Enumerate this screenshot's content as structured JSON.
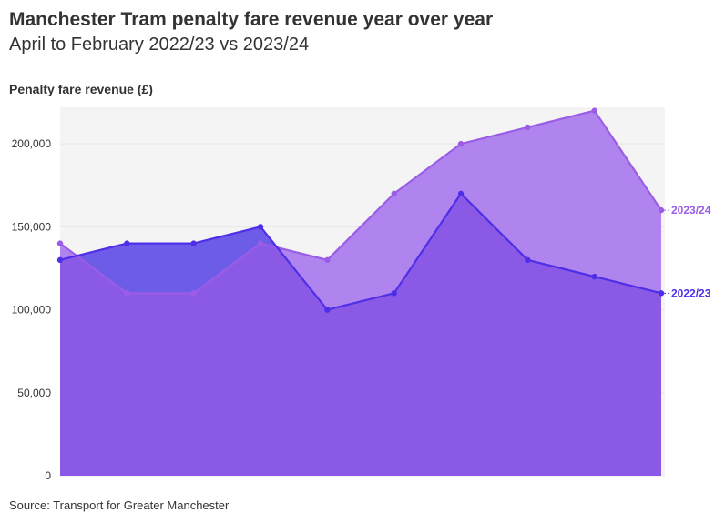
{
  "header": {
    "title": "Manchester Tram penalty fare revenue year over year",
    "subtitle": "April to February 2022/23 vs 2023/24"
  },
  "footer": {
    "source": "Source: Transport for Greater Manchester"
  },
  "chart_data": {
    "type": "area",
    "title": "Manchester Tram penalty fare revenue year over year",
    "subtitle": "April to February 2022/23 vs 2023/24",
    "ylabel": "Penalty fare revenue (£)",
    "xlabel": "",
    "ylim": [
      0,
      222000
    ],
    "yticks": [
      0,
      50000,
      100000,
      150000,
      200000
    ],
    "ytick_labels": [
      "0",
      "50,000",
      "100,000",
      "150,000",
      "200,000"
    ],
    "x_points": 10,
    "grid": true,
    "series": [
      {
        "name": "2022/23",
        "values": [
          130000,
          140000,
          140000,
          150000,
          100000,
          110000,
          170000,
          130000,
          120000,
          110000
        ],
        "line_color": "#4f2ee8",
        "fill_color": "#6c5ce7"
      },
      {
        "name": "2023/24",
        "values": [
          140000,
          110000,
          110000,
          140000,
          130000,
          170000,
          200000,
          210000,
          220000,
          160000
        ],
        "line_color": "#9b5de5",
        "fill_color": "#b084ee"
      }
    ],
    "overlap_fill_color": "#8a5ae6"
  }
}
